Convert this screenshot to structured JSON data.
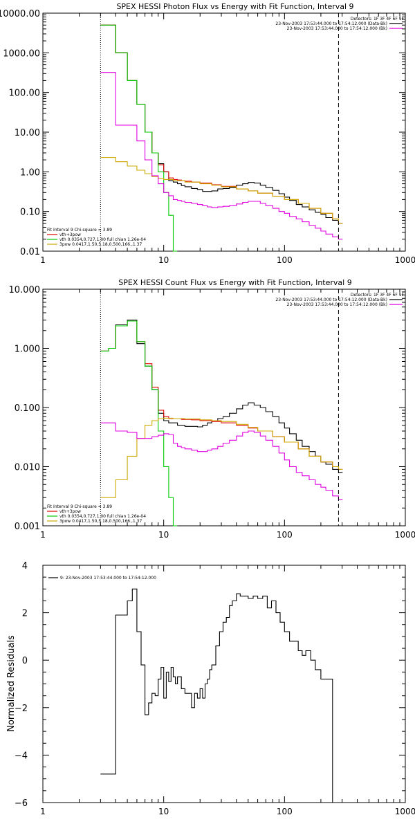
{
  "chart_data": [
    {
      "type": "line",
      "title": "SPEX HESSI Photon Flux vs Energy with Fit Function, Interval 9",
      "xlabel": "",
      "ylabel": "",
      "xscale": "log",
      "yscale": "log",
      "xlim": [
        1,
        1000
      ],
      "ylim": [
        0.01,
        10000
      ],
      "x_ticks": [
        "1",
        "10",
        "100",
        "1000"
      ],
      "y_ticks": [
        "10000.00",
        "1000.00",
        "100.00",
        "10.00",
        "1.00",
        "0.10",
        "0.01"
      ],
      "vertical_lines": [
        {
          "x": 3,
          "style": "dotted"
        },
        {
          "x": 280,
          "style": "dashed"
        }
      ],
      "info_lines": [
        "Detectors: 1F 3F 4F 6F 9F",
        "23-Nov-2003 17:53:44.000 to 17:54:12.000 (Data-Bk)",
        "23-Nov-2003 17:53:44.000 to 17:54:12.000 (Bk)"
      ],
      "fit_header": "Fit Interval 9   Chi-square = 3.89",
      "legend": [
        {
          "label": "vth+3pow",
          "color": "#e00000"
        },
        {
          "label": "vth 0.0354,0.727,1.00  full chian 1.26e-04",
          "color": "#00cc00"
        },
        {
          "label": "3pow 0.0417,1.50,5.18,0.500,166.,1.37",
          "color": "#ccaa00"
        }
      ],
      "series": [
        {
          "name": "Data-Bk",
          "color": "#000000",
          "x": [
            3,
            3.5,
            4,
            5,
            6,
            7,
            8,
            9,
            10,
            11,
            12,
            13,
            14,
            15,
            17,
            19,
            21,
            23,
            25,
            28,
            31,
            35,
            40,
            45,
            50,
            56,
            63,
            70,
            80,
            90,
            100,
            110,
            125,
            140,
            160,
            180,
            200,
            220,
            250,
            280
          ],
          "y": [
            5000,
            5000,
            1000,
            200,
            50,
            10,
            3,
            1.6,
            1.0,
            0.6,
            0.55,
            0.5,
            0.45,
            0.42,
            0.38,
            0.36,
            0.32,
            0.32,
            0.33,
            0.37,
            0.38,
            0.4,
            0.46,
            0.5,
            0.54,
            0.52,
            0.46,
            0.4,
            0.34,
            0.28,
            0.23,
            0.19,
            0.15,
            0.13,
            0.11,
            0.095,
            0.085,
            0.07,
            0.06,
            0.05
          ]
        },
        {
          "name": "vth+3pow",
          "color": "#e00000",
          "x": [
            3,
            3.5,
            4,
            5,
            6,
            7,
            8,
            9,
            10,
            11,
            12,
            13,
            14,
            15,
            17,
            20,
            25,
            30,
            40,
            50,
            60,
            80,
            100,
            130,
            160,
            200,
            250,
            280
          ],
          "y": [
            5000,
            5000,
            1000,
            200,
            50,
            10,
            3,
            1.5,
            1.0,
            0.7,
            0.64,
            0.62,
            0.6,
            0.58,
            0.55,
            0.52,
            0.47,
            0.43,
            0.37,
            0.33,
            0.29,
            0.24,
            0.2,
            0.16,
            0.12,
            0.09,
            0.065,
            0.05
          ]
        },
        {
          "name": "vth",
          "color": "#00cc00",
          "x": [
            3,
            3.5,
            4,
            5,
            6,
            7,
            8,
            9,
            10,
            11,
            12
          ],
          "y": [
            5000,
            5000,
            1000,
            200,
            50,
            10,
            3,
            1.0,
            0.3,
            0.08,
            0.01
          ]
        },
        {
          "name": "3pow",
          "color": "#ccaa00",
          "x": [
            3,
            4,
            5,
            6,
            7,
            8,
            9,
            10,
            12,
            15,
            20,
            25,
            30,
            40,
            50,
            60,
            80,
            100,
            130,
            160,
            200,
            250,
            280
          ],
          "y": [
            2.3,
            1.8,
            1.4,
            1.1,
            0.9,
            0.75,
            0.68,
            0.64,
            0.6,
            0.55,
            0.5,
            0.46,
            0.42,
            0.37,
            0.33,
            0.29,
            0.24,
            0.2,
            0.16,
            0.12,
            0.09,
            0.065,
            0.05
          ]
        },
        {
          "name": "Bk",
          "color": "#e000e0",
          "x": [
            3,
            3.5,
            4,
            5,
            6,
            7,
            8,
            9,
            10,
            11,
            12,
            13,
            14,
            15,
            17,
            19,
            21,
            23,
            25,
            28,
            31,
            35,
            40,
            45,
            50,
            56,
            63,
            70,
            80,
            90,
            100,
            110,
            125,
            140,
            160,
            180,
            200,
            220,
            250,
            280
          ],
          "y": [
            320,
            320,
            15,
            15,
            6,
            2,
            0.8,
            0.5,
            0.3,
            0.25,
            0.2,
            0.19,
            0.18,
            0.17,
            0.16,
            0.15,
            0.14,
            0.13,
            0.125,
            0.13,
            0.135,
            0.14,
            0.155,
            0.17,
            0.18,
            0.18,
            0.16,
            0.14,
            0.12,
            0.1,
            0.09,
            0.075,
            0.065,
            0.055,
            0.045,
            0.038,
            0.032,
            0.027,
            0.023,
            0.02
          ]
        }
      ]
    },
    {
      "type": "line",
      "title": "SPEX HESSI Count Flux vs Energy with Fit Function, Interval 9",
      "xlabel": "",
      "ylabel": "",
      "xscale": "log",
      "yscale": "log",
      "xlim": [
        1,
        1000
      ],
      "ylim": [
        0.001,
        10
      ],
      "x_ticks": [
        "1",
        "10",
        "100",
        "1000"
      ],
      "y_ticks": [
        "10.000",
        "1.000",
        "0.100",
        "0.010",
        "0.001"
      ],
      "vertical_lines": [
        {
          "x": 3,
          "style": "dotted"
        },
        {
          "x": 280,
          "style": "dashed"
        }
      ],
      "info_lines": [
        "Detectors: 1F 3F 4F 6F 9F",
        "23-Nov-2003 17:53:44.000 to 17:54:12.000 (Data-Bk)",
        "23-Nov-2003 17:53:44.000 to 17:54:12.000 (Bk)"
      ],
      "fit_header": "Fit Interval 9   Chi-square = 3.89",
      "legend": [
        {
          "label": "vth+3pow",
          "color": "#e00000"
        },
        {
          "label": "vth 0.0354,0.727,1.00  full chian 1.26e-04",
          "color": "#00cc00"
        },
        {
          "label": "3pow 0.0417,1.50,5.18,0.500,166.,1.37",
          "color": "#ccaa00"
        }
      ],
      "series": [
        {
          "name": "Data-Bk",
          "color": "#000000",
          "x": [
            3,
            3.5,
            4,
            5,
            6,
            7,
            8,
            9,
            10,
            11,
            12,
            13,
            14,
            15,
            17,
            19,
            21,
            23,
            25,
            28,
            31,
            35,
            40,
            45,
            50,
            56,
            63,
            70,
            80,
            90,
            100,
            110,
            125,
            140,
            160,
            180,
            200,
            220,
            250,
            280
          ],
          "y": [
            0.9,
            1.0,
            2.5,
            3.0,
            1.2,
            0.5,
            0.2,
            0.08,
            0.06,
            0.055,
            0.055,
            0.05,
            0.05,
            0.048,
            0.048,
            0.047,
            0.05,
            0.055,
            0.06,
            0.065,
            0.07,
            0.08,
            0.095,
            0.11,
            0.12,
            0.11,
            0.1,
            0.085,
            0.07,
            0.055,
            0.045,
            0.036,
            0.028,
            0.022,
            0.018,
            0.015,
            0.012,
            0.011,
            0.009,
            0.008
          ]
        },
        {
          "name": "vth+3pow",
          "color": "#e00000",
          "x": [
            3,
            3.5,
            4,
            5,
            6,
            7,
            8,
            9,
            10,
            11,
            12,
            14,
            17,
            20,
            25,
            30,
            40,
            50,
            60,
            80,
            100,
            130,
            160,
            200,
            250,
            280
          ],
          "y": [
            0.9,
            1.0,
            2.4,
            2.9,
            1.3,
            0.55,
            0.22,
            0.09,
            0.07,
            0.065,
            0.065,
            0.063,
            0.062,
            0.06,
            0.058,
            0.055,
            0.05,
            0.045,
            0.04,
            0.032,
            0.026,
            0.02,
            0.015,
            0.012,
            0.01,
            0.009
          ]
        },
        {
          "name": "vth",
          "color": "#00cc00",
          "x": [
            3,
            3.5,
            4,
            5,
            6,
            7,
            8,
            9,
            10,
            11,
            12
          ],
          "y": [
            0.9,
            1.0,
            2.4,
            2.9,
            1.3,
            0.5,
            0.2,
            0.04,
            0.01,
            0.003,
            0.001
          ]
        },
        {
          "name": "3pow",
          "color": "#ccaa00",
          "x": [
            3,
            4,
            5,
            6,
            7,
            8,
            9,
            10,
            12,
            15,
            20,
            25,
            30,
            40,
            50,
            60,
            80,
            100,
            130,
            160,
            200,
            250,
            280
          ],
          "y": [
            0.003,
            0.006,
            0.015,
            0.03,
            0.05,
            0.06,
            0.065,
            0.066,
            0.065,
            0.064,
            0.062,
            0.06,
            0.058,
            0.052,
            0.046,
            0.04,
            0.032,
            0.026,
            0.02,
            0.015,
            0.012,
            0.01,
            0.009
          ]
        },
        {
          "name": "Bk",
          "color": "#e000e0",
          "x": [
            3,
            3.5,
            4,
            5,
            6,
            7,
            8,
            9,
            10,
            11,
            12,
            13,
            14,
            15,
            17,
            19,
            21,
            23,
            25,
            28,
            31,
            35,
            40,
            45,
            50,
            56,
            63,
            70,
            80,
            90,
            100,
            110,
            125,
            140,
            160,
            180,
            200,
            220,
            250,
            280
          ],
          "y": [
            0.055,
            0.055,
            0.04,
            0.038,
            0.03,
            0.03,
            0.032,
            0.034,
            0.036,
            0.035,
            0.025,
            0.022,
            0.021,
            0.02,
            0.019,
            0.018,
            0.018,
            0.019,
            0.02,
            0.022,
            0.025,
            0.028,
            0.033,
            0.038,
            0.04,
            0.038,
            0.033,
            0.028,
            0.022,
            0.017,
            0.013,
            0.01,
            0.008,
            0.007,
            0.006,
            0.005,
            0.0045,
            0.004,
            0.0032,
            0.0028
          ]
        }
      ]
    },
    {
      "type": "line",
      "title": "",
      "xlabel": "",
      "ylabel": "Normalized Residuals",
      "xscale": "log",
      "yscale": "linear",
      "xlim": [
        1,
        1000
      ],
      "ylim": [
        -6,
        4
      ],
      "x_ticks": [
        "1",
        "10",
        "100",
        "1000"
      ],
      "y_ticks": [
        "4",
        "2",
        "0",
        "−2",
        "−4",
        "−6"
      ],
      "legend": [
        {
          "label": "9: 23-Nov-2003 17:53:44.000 to 17:54:12.000",
          "color": "#000000"
        }
      ],
      "series": [
        {
          "name": "residuals",
          "color": "#000000",
          "x": [
            3,
            3.5,
            4,
            4.5,
            5,
            5.5,
            6,
            6.5,
            7,
            7.5,
            8,
            8.5,
            9,
            9.5,
            10,
            10.5,
            11,
            11.5,
            12,
            12.5,
            13,
            14,
            15,
            16,
            17,
            18,
            19,
            20,
            21,
            22,
            23,
            24,
            25,
            27,
            29,
            31,
            33,
            35,
            37,
            40,
            43,
            46,
            50,
            55,
            60,
            66,
            72,
            78,
            85,
            92,
            100,
            110,
            120,
            130,
            140,
            150,
            165,
            180,
            200,
            220,
            250,
            280
          ],
          "y": [
            -4.8,
            -4.8,
            1.9,
            1.9,
            2.5,
            3.0,
            1.2,
            -0.2,
            -2.3,
            -1.8,
            -1.4,
            -1.5,
            -0.8,
            -0.3,
            -1.6,
            -0.5,
            -0.9,
            -0.3,
            -0.7,
            -1.0,
            -0.7,
            -1.2,
            -1.4,
            -1.4,
            -2.0,
            -1.4,
            -1.6,
            -1.2,
            -1.6,
            -1.0,
            -0.8,
            -0.4,
            -0.2,
            0.6,
            1.2,
            1.6,
            1.8,
            2.3,
            2.5,
            2.8,
            2.7,
            2.7,
            2.6,
            2.7,
            2.6,
            2.7,
            2.2,
            2.5,
            2.0,
            1.6,
            1.2,
            0.8,
            0.8,
            0.4,
            0.2,
            0.4,
            0,
            -0.4,
            -0.8,
            -0.8,
            -6,
            -6
          ]
        }
      ]
    }
  ]
}
